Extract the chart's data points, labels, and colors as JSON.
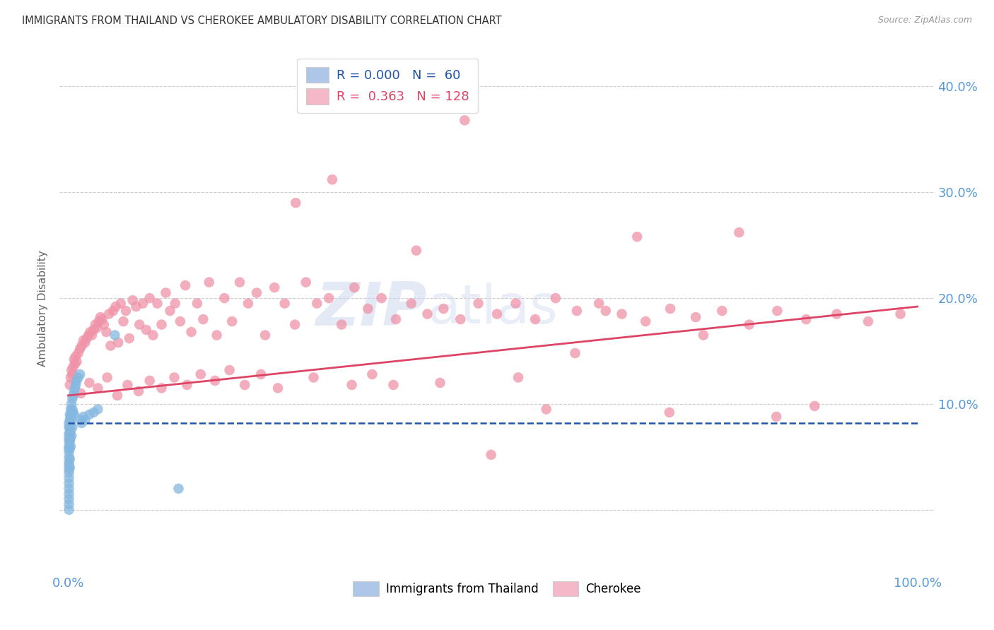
{
  "title": "IMMIGRANTS FROM THAILAND VS CHEROKEE AMBULATORY DISABILITY CORRELATION CHART",
  "source": "Source: ZipAtlas.com",
  "ylabel": "Ambulatory Disability",
  "xlim": [
    -0.01,
    1.02
  ],
  "ylim": [
    -0.06,
    0.44
  ],
  "yticks": [
    0.0,
    0.1,
    0.2,
    0.3,
    0.4
  ],
  "yticklabels_right": [
    "",
    "10.0%",
    "20.0%",
    "30.0%",
    "40.0%"
  ],
  "xticklabels": [
    "0.0%",
    "100.0%"
  ],
  "xtick_pos": [
    0.0,
    1.0
  ],
  "legend1_color": "#aec6e8",
  "legend2_color": "#f4b8c8",
  "scatter1_color": "#85b8e0",
  "scatter2_color": "#f093a8",
  "line1_color": "#2255aa",
  "line2_color": "#dd4466",
  "axis_color": "#5599dd",
  "grid_color": "#cccccc",
  "background_color": "#ffffff",
  "title_color": "#333333",
  "source_color": "#999999",
  "ylabel_color": "#666666",
  "watermark_color": "#ccd8ee",
  "thailand_x": [
    0.001,
    0.001,
    0.001,
    0.001,
    0.001,
    0.001,
    0.001,
    0.001,
    0.001,
    0.001,
    0.001,
    0.001,
    0.001,
    0.001,
    0.001,
    0.001,
    0.001,
    0.001,
    0.001,
    0.001,
    0.002,
    0.002,
    0.002,
    0.002,
    0.002,
    0.002,
    0.002,
    0.002,
    0.003,
    0.003,
    0.003,
    0.003,
    0.003,
    0.003,
    0.004,
    0.004,
    0.004,
    0.004,
    0.005,
    0.005,
    0.005,
    0.006,
    0.006,
    0.007,
    0.007,
    0.008,
    0.009,
    0.01,
    0.012,
    0.014,
    0.015,
    0.016,
    0.018,
    0.02,
    0.025,
    0.03,
    0.035,
    0.055,
    0.13
  ],
  "thailand_y": [
    0.082,
    0.078,
    0.072,
    0.068,
    0.065,
    0.06,
    0.058,
    0.055,
    0.05,
    0.045,
    0.042,
    0.038,
    0.035,
    0.03,
    0.025,
    0.02,
    0.015,
    0.01,
    0.005,
    0.0,
    0.09,
    0.085,
    0.078,
    0.072,
    0.065,
    0.058,
    0.048,
    0.04,
    0.095,
    0.088,
    0.082,
    0.075,
    0.068,
    0.06,
    0.1,
    0.092,
    0.085,
    0.07,
    0.105,
    0.095,
    0.078,
    0.108,
    0.092,
    0.112,
    0.09,
    0.115,
    0.118,
    0.122,
    0.125,
    0.128,
    0.085,
    0.082,
    0.088,
    0.085,
    0.09,
    0.092,
    0.095,
    0.165,
    0.02
  ],
  "cherokee_x": [
    0.002,
    0.003,
    0.004,
    0.005,
    0.006,
    0.007,
    0.008,
    0.009,
    0.01,
    0.012,
    0.014,
    0.016,
    0.018,
    0.02,
    0.022,
    0.024,
    0.026,
    0.028,
    0.03,
    0.032,
    0.034,
    0.036,
    0.038,
    0.04,
    0.042,
    0.045,
    0.048,
    0.05,
    0.053,
    0.056,
    0.059,
    0.062,
    0.065,
    0.068,
    0.072,
    0.076,
    0.08,
    0.084,
    0.088,
    0.092,
    0.096,
    0.1,
    0.105,
    0.11,
    0.115,
    0.12,
    0.126,
    0.132,
    0.138,
    0.145,
    0.152,
    0.159,
    0.166,
    0.175,
    0.184,
    0.193,
    0.202,
    0.212,
    0.222,
    0.232,
    0.243,
    0.255,
    0.267,
    0.28,
    0.293,
    0.307,
    0.322,
    0.337,
    0.353,
    0.369,
    0.386,
    0.404,
    0.423,
    0.442,
    0.462,
    0.483,
    0.505,
    0.527,
    0.55,
    0.574,
    0.599,
    0.625,
    0.652,
    0.68,
    0.709,
    0.739,
    0.77,
    0.802,
    0.835,
    0.869,
    0.905,
    0.942,
    0.98,
    0.015,
    0.025,
    0.035,
    0.046,
    0.058,
    0.07,
    0.083,
    0.096,
    0.11,
    0.125,
    0.14,
    0.156,
    0.173,
    0.19,
    0.208,
    0.227,
    0.247,
    0.268,
    0.289,
    0.311,
    0.334,
    0.358,
    0.383,
    0.41,
    0.438,
    0.467,
    0.498,
    0.53,
    0.563,
    0.597,
    0.633,
    0.67,
    0.708,
    0.748,
    0.79,
    0.834,
    0.879
  ],
  "cherokee_y": [
    0.118,
    0.125,
    0.132,
    0.128,
    0.135,
    0.142,
    0.138,
    0.145,
    0.14,
    0.148,
    0.152,
    0.155,
    0.16,
    0.158,
    0.162,
    0.165,
    0.168,
    0.165,
    0.17,
    0.175,
    0.172,
    0.178,
    0.182,
    0.18,
    0.175,
    0.168,
    0.185,
    0.155,
    0.188,
    0.192,
    0.158,
    0.195,
    0.178,
    0.188,
    0.162,
    0.198,
    0.192,
    0.175,
    0.195,
    0.17,
    0.2,
    0.165,
    0.195,
    0.175,
    0.205,
    0.188,
    0.195,
    0.178,
    0.212,
    0.168,
    0.195,
    0.18,
    0.215,
    0.165,
    0.2,
    0.178,
    0.215,
    0.195,
    0.205,
    0.165,
    0.21,
    0.195,
    0.175,
    0.215,
    0.195,
    0.2,
    0.175,
    0.21,
    0.19,
    0.2,
    0.18,
    0.195,
    0.185,
    0.19,
    0.18,
    0.195,
    0.185,
    0.195,
    0.18,
    0.2,
    0.188,
    0.195,
    0.185,
    0.178,
    0.19,
    0.182,
    0.188,
    0.175,
    0.188,
    0.18,
    0.185,
    0.178,
    0.185,
    0.11,
    0.12,
    0.115,
    0.125,
    0.108,
    0.118,
    0.112,
    0.122,
    0.115,
    0.125,
    0.118,
    0.128,
    0.122,
    0.132,
    0.118,
    0.128,
    0.115,
    0.29,
    0.125,
    0.312,
    0.118,
    0.128,
    0.118,
    0.245,
    0.12,
    0.368,
    0.052,
    0.125,
    0.095,
    0.148,
    0.188,
    0.258,
    0.092,
    0.165,
    0.262,
    0.088,
    0.098
  ],
  "thailand_line_y": 0.082,
  "cherokee_line_start_y": 0.108,
  "cherokee_line_end_y": 0.192
}
